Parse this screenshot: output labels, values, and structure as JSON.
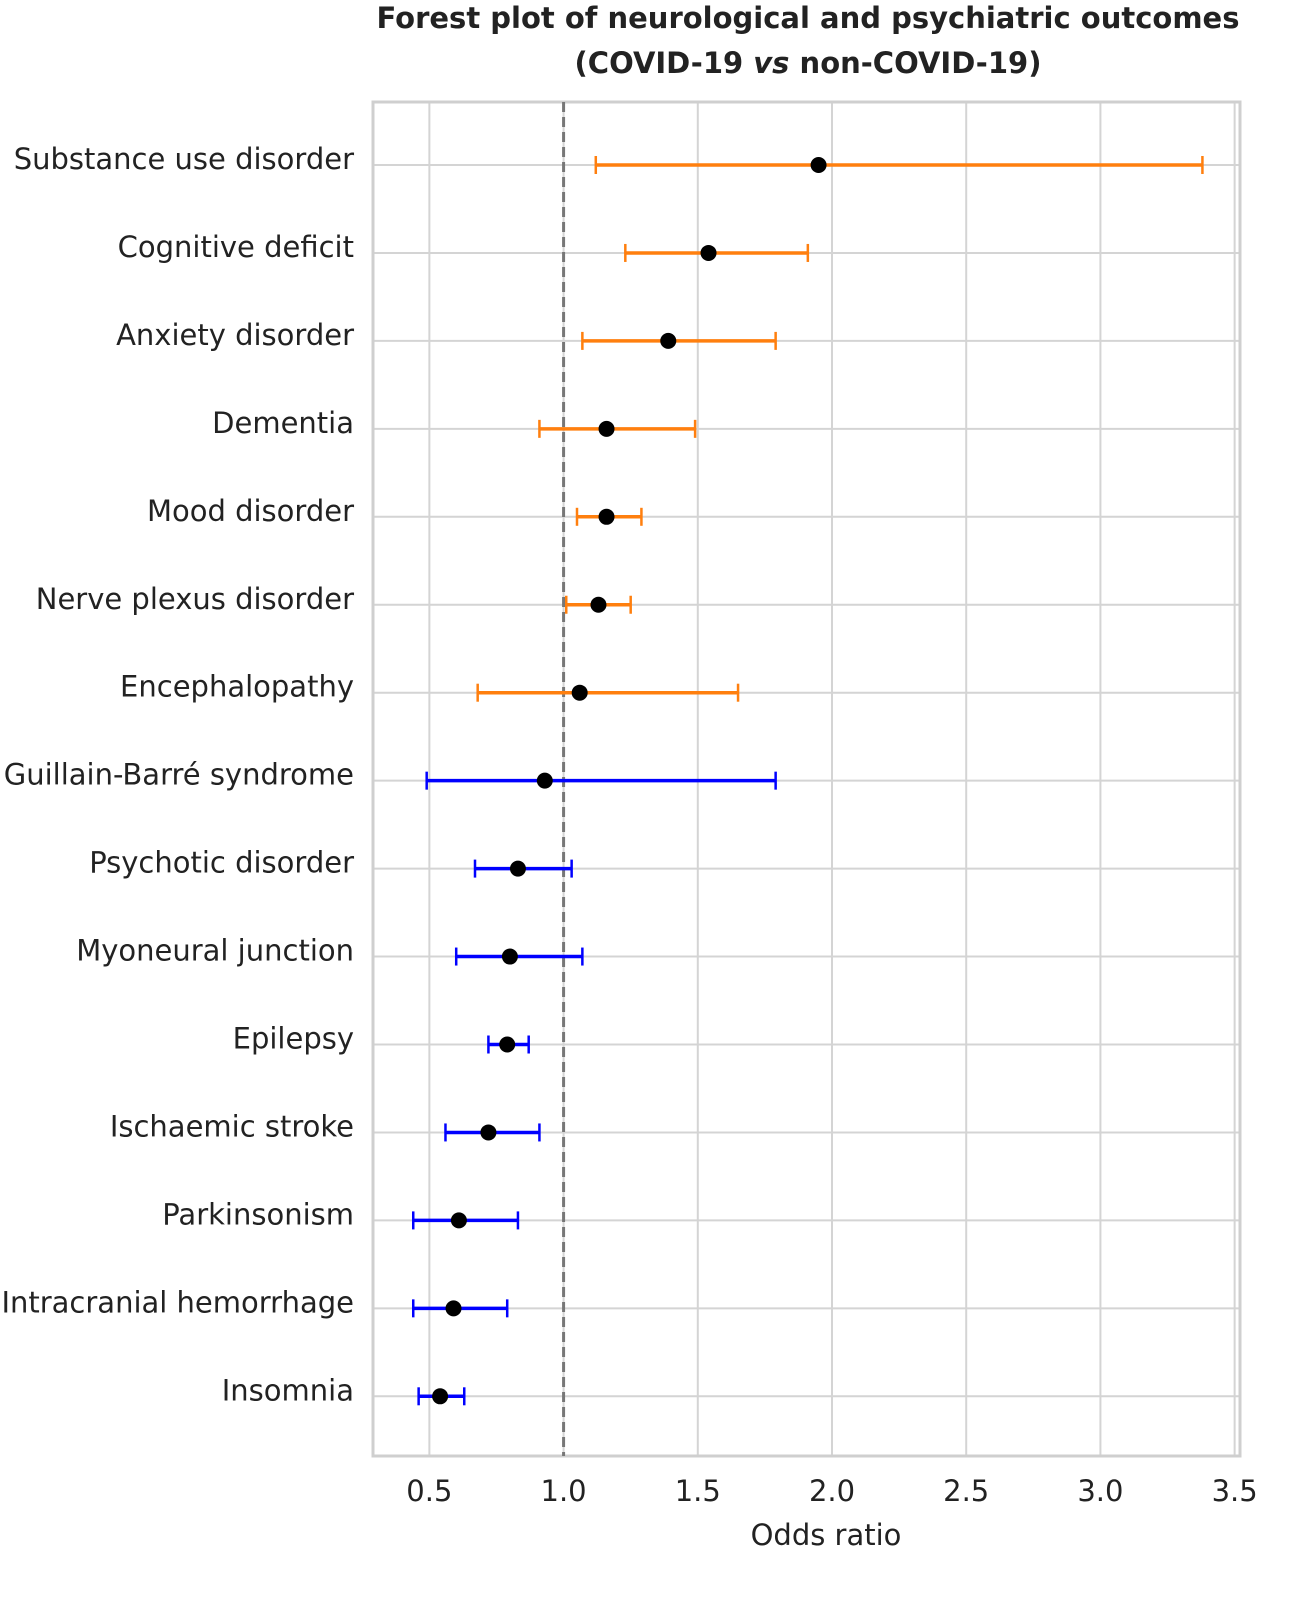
{
  "chart_data": {
    "type": "forest",
    "title": [
      "Forest plot of neurological and psychiatric outcomes",
      [
        "(COVID-19 ",
        "vs",
        " non-COVID-19)"
      ]
    ],
    "xlabel": "Odds ratio",
    "categories": [
      "Substance use disorder",
      "Cognitive deficit",
      "Anxiety disorder",
      "Dementia",
      "Mood disorder",
      "Nerve plexus disorder",
      "Encephalopathy",
      "Guillain-Barré syndrome",
      "Psychotic disorder",
      "Myoneural junction",
      "Epilepsy",
      "Ischaemic stroke",
      "Parkinsonism",
      "Intracranial hemorrhage",
      "Insomnia"
    ],
    "values": [
      1.95,
      1.54,
      1.39,
      1.16,
      1.16,
      1.13,
      1.06,
      0.93,
      0.83,
      0.8,
      0.79,
      0.72,
      0.61,
      0.59,
      0.54
    ],
    "lower": [
      1.12,
      1.23,
      1.07,
      0.91,
      1.05,
      1.01,
      0.68,
      0.49,
      0.67,
      0.6,
      0.72,
      0.56,
      0.44,
      0.44,
      0.46
    ],
    "upper": [
      3.38,
      1.91,
      1.79,
      1.49,
      1.29,
      1.25,
      1.65,
      1.79,
      1.03,
      1.07,
      0.87,
      0.91,
      0.83,
      0.79,
      0.63
    ],
    "colors": [
      "#ff7f0e",
      "#ff7f0e",
      "#ff7f0e",
      "#ff7f0e",
      "#ff7f0e",
      "#ff7f0e",
      "#ff7f0e",
      "#0000ff",
      "#0000ff",
      "#0000ff",
      "#0000ff",
      "#0000ff",
      "#0000ff",
      "#0000ff",
      "#0000ff"
    ],
    "point_color": "#000000",
    "reference_line": 1.0,
    "xlim": [
      0.29,
      3.52
    ],
    "xticks": [
      0.5,
      {
        "value": 1.0,
        "label": "1.0"
      },
      1.5,
      {
        "value": 2.0,
        "label": "2.0"
      },
      2.5,
      {
        "value": 3.0,
        "label": "3.0"
      },
      3.5
    ],
    "grid": true
  }
}
